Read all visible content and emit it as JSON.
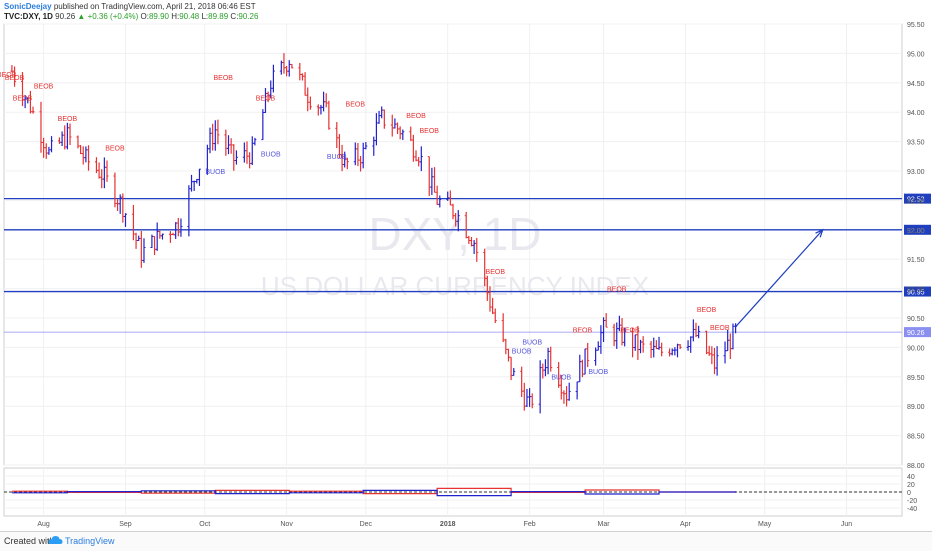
{
  "header": {
    "author": "SonicDeejay",
    "published": "published on TradingView.com, April 21, 2018 06:46 EST",
    "symbol": "TVC:DXY, 1D",
    "last": "90.26",
    "change_arrow": "▲",
    "change": "+0.36 (+0.4%)",
    "o_label": "O:",
    "o": "89.90",
    "h_label": "H:",
    "h": "90.48",
    "l_label": "L:",
    "l": "89.89",
    "c_label": "C:",
    "c": "90.26"
  },
  "footer": {
    "created": "Created with",
    "brand": "TradingView",
    "logo_icon": "tradingview-cloud-icon"
  },
  "chart_data": {
    "type": "line",
    "watermark": {
      "symbol": "DXY, 1D",
      "name": "US DOLLAR CURRENCY INDEX"
    },
    "ylim": [
      88.0,
      95.5
    ],
    "y_ticks": [
      "95.50",
      "95.00",
      "94.50",
      "94.00",
      "93.50",
      "93.00",
      "92.50",
      "92.00",
      "91.50",
      "91.00",
      "90.50",
      "90.00",
      "89.50",
      "89.00",
      "88.50",
      "88.00"
    ],
    "x_ticks": [
      "Aug",
      "Sep",
      "Oct",
      "Nov",
      "Dec",
      "2018",
      "Feb",
      "Mar",
      "Apr",
      "May",
      "Jun"
    ],
    "horizontal_levels": [
      {
        "value": 92.53,
        "label": "92.53",
        "color": "#1f3fbf"
      },
      {
        "value": 92.0,
        "label": "92.00",
        "color": "#1f3fbf"
      },
      {
        "value": 90.95,
        "label": "90.95",
        "color": "#1f3fbf"
      },
      {
        "value": 90.26,
        "label": "90.26",
        "color": "#8a8ff0"
      }
    ],
    "projection_arrow": {
      "from": "2018-04-20",
      "from_value": 90.35,
      "to": "2018-05-23",
      "to_value": 92.0,
      "color": "#1f3fbf"
    },
    "series": [
      {
        "x": [
          "2017-07-20",
          "2017-07-27",
          "2017-08-03",
          "2017-08-10",
          "2017-08-17",
          "2017-08-24",
          "2017-08-31",
          "2017-09-07",
          "2017-09-14",
          "2017-09-21",
          "2017-09-28",
          "2017-10-05",
          "2017-10-12",
          "2017-10-19",
          "2017-10-26",
          "2017-11-02",
          "2017-11-09",
          "2017-11-16",
          "2017-11-23",
          "2017-11-30",
          "2017-12-07",
          "2017-12-14",
          "2017-12-21",
          "2017-12-28",
          "2018-01-04",
          "2018-01-11",
          "2018-01-18",
          "2018-01-25",
          "2018-02-01",
          "2018-02-08",
          "2018-02-15",
          "2018-02-22",
          "2018-03-01",
          "2018-03-08",
          "2018-03-15",
          "2018-03-22",
          "2018-03-29",
          "2018-04-05",
          "2018-04-12",
          "2018-04-20"
        ],
        "values": [
          94.7,
          94.1,
          93.3,
          93.6,
          93.2,
          92.9,
          92.4,
          91.6,
          91.9,
          92.1,
          93.0,
          93.7,
          93.2,
          93.3,
          94.5,
          94.9,
          94.3,
          94.0,
          93.1,
          93.3,
          93.9,
          93.7,
          93.3,
          92.5,
          92.3,
          91.8,
          90.6,
          89.6,
          89.0,
          89.9,
          89.2,
          89.8,
          90.3,
          90.2,
          90.0,
          89.9,
          90.1,
          90.2,
          89.7,
          90.26
        ],
        "up_color": "#2222cc",
        "down_color": "#e63232"
      }
    ],
    "annotations": {
      "beob": [
        {
          "label": "BEOB",
          "x": "2017-07-18",
          "y": 94.6
        },
        {
          "label": "BEOB",
          "x": "2017-07-21",
          "y": 94.55
        },
        {
          "label": "BEOB",
          "x": "2017-07-24",
          "y": 94.2
        },
        {
          "label": "BEOB",
          "x": "2017-08-01",
          "y": 94.4
        },
        {
          "label": "BEOB",
          "x": "2017-08-10",
          "y": 93.85
        },
        {
          "label": "BEOB",
          "x": "2017-08-28",
          "y": 93.35
        },
        {
          "label": "BEOB",
          "x": "2017-10-08",
          "y": 94.55
        },
        {
          "label": "BEOB",
          "x": "2017-10-24",
          "y": 94.2
        },
        {
          "label": "BEOB",
          "x": "2017-11-27",
          "y": 94.1
        },
        {
          "label": "BEOB",
          "x": "2017-12-20",
          "y": 93.9
        },
        {
          "label": "BEOB",
          "x": "2017-12-25",
          "y": 93.65
        },
        {
          "label": "BEOB",
          "x": "2018-01-19",
          "y": 91.25
        },
        {
          "label": "BEOB",
          "x": "2018-02-21",
          "y": 90.25
        },
        {
          "label": "BEOB",
          "x": "2018-03-06",
          "y": 90.95
        },
        {
          "label": "BEOB",
          "x": "2018-03-11",
          "y": 90.25
        },
        {
          "label": "BEOB",
          "x": "2018-04-09",
          "y": 90.6
        },
        {
          "label": "BEOB",
          "x": "2018-04-14",
          "y": 90.3
        }
      ],
      "buob": [
        {
          "label": "BUOB",
          "x": "2017-10-05",
          "y": 92.95
        },
        {
          "label": "BUOB",
          "x": "2017-10-26",
          "y": 93.25
        },
        {
          "label": "BUOB",
          "x": "2017-11-20",
          "y": 93.2
        },
        {
          "label": "BUOB",
          "x": "2018-01-29",
          "y": 89.9
        },
        {
          "label": "BUOB",
          "x": "2018-02-02",
          "y": 90.05
        },
        {
          "label": "BUOB",
          "x": "2018-02-13",
          "y": 89.45
        },
        {
          "label": "BUOB",
          "x": "2018-02-27",
          "y": 89.55
        }
      ]
    },
    "oscillator": {
      "ylim": [
        -60,
        60
      ],
      "y_ticks": [
        "40",
        "20",
        "0",
        "-20",
        "-40"
      ],
      "zero_line": "dashed",
      "series": [
        {
          "name": "",
          "color": "#e63232",
          "x": [
            "2017-07-20",
            "2017-08-10",
            "2017-09-07",
            "2017-10-05",
            "2017-11-02",
            "2017-11-30",
            "2017-12-28",
            "2018-01-25",
            "2018-02-22",
            "2018-03-22",
            "2018-04-20"
          ],
          "values": [
            2,
            -1,
            -3,
            4,
            2,
            -4,
            9,
            -1,
            5,
            0,
            -2
          ]
        },
        {
          "name": "",
          "color": "#2222cc",
          "x": [
            "2017-07-20",
            "2017-08-10",
            "2017-09-07",
            "2017-10-05",
            "2017-11-02",
            "2017-11-30",
            "2017-12-28",
            "2018-01-25",
            "2018-02-22",
            "2018-03-22",
            "2018-04-20"
          ],
          "values": [
            -2,
            1,
            3,
            -4,
            -2,
            4,
            -9,
            1,
            -5,
            0,
            2
          ]
        }
      ]
    }
  }
}
